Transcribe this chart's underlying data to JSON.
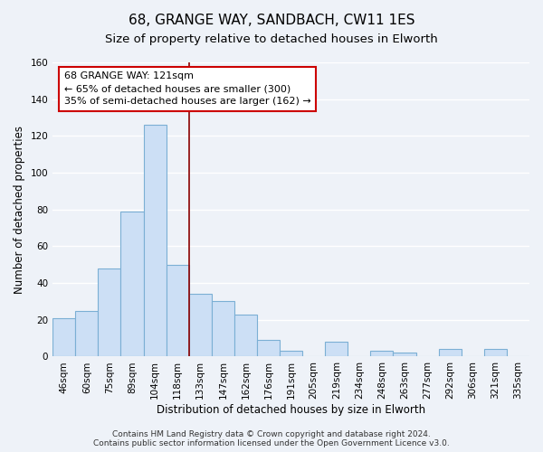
{
  "title": "68, GRANGE WAY, SANDBACH, CW11 1ES",
  "subtitle": "Size of property relative to detached houses in Elworth",
  "xlabel": "Distribution of detached houses by size in Elworth",
  "ylabel": "Number of detached properties",
  "categories": [
    "46sqm",
    "60sqm",
    "75sqm",
    "89sqm",
    "104sqm",
    "118sqm",
    "133sqm",
    "147sqm",
    "162sqm",
    "176sqm",
    "191sqm",
    "205sqm",
    "219sqm",
    "234sqm",
    "248sqm",
    "263sqm",
    "277sqm",
    "292sqm",
    "306sqm",
    "321sqm",
    "335sqm"
  ],
  "values": [
    21,
    25,
    48,
    79,
    126,
    50,
    34,
    30,
    23,
    9,
    3,
    0,
    8,
    0,
    3,
    2,
    0,
    4,
    0,
    4,
    0
  ],
  "bar_color": "#ccdff5",
  "bar_edge_color": "#7bafd4",
  "vline_color": "#8b0000",
  "ylim": [
    0,
    160
  ],
  "yticks": [
    0,
    20,
    40,
    60,
    80,
    100,
    120,
    140,
    160
  ],
  "annotation_box_text": [
    "68 GRANGE WAY: 121sqm",
    "← 65% of detached houses are smaller (300)",
    "35% of semi-detached houses are larger (162) →"
  ],
  "annotation_box_color": "#ffffff",
  "annotation_box_edge_color": "#cc0000",
  "footer_line1": "Contains HM Land Registry data © Crown copyright and database right 2024.",
  "footer_line2": "Contains public sector information licensed under the Open Government Licence v3.0.",
  "background_color": "#eef2f8",
  "plot_bg_color": "#eef2f8",
  "grid_color": "#ffffff",
  "title_fontsize": 11,
  "subtitle_fontsize": 9.5,
  "axis_label_fontsize": 8.5,
  "tick_fontsize": 7.5,
  "annotation_fontsize": 8,
  "footer_fontsize": 6.5,
  "vline_bar_index": 5
}
